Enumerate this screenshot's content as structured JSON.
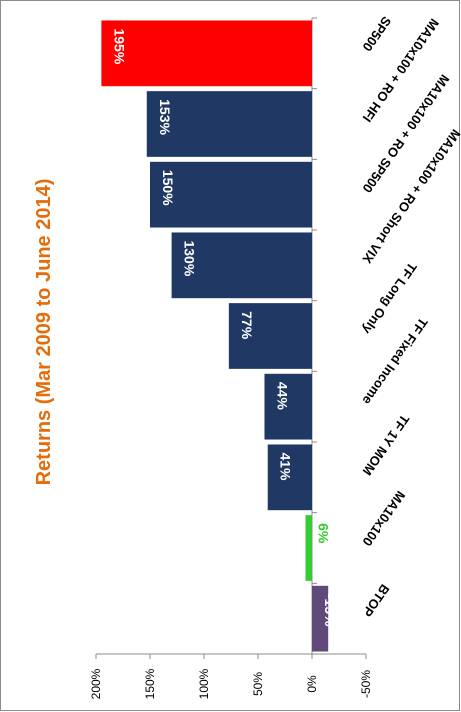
{
  "chart_data": {
    "type": "bar",
    "orientation": "horizontal",
    "title": "Returns (Mar 2009 to June 2014)",
    "categories": [
      "SP500",
      "MA10x100 + RO HFI",
      "MA10x100 + RO SP500",
      "MA10x100 + RO Short VIX",
      "TF Long Only",
      "TF Fixed Income",
      "TF 1Y MOM",
      "MA10x100",
      "BTOP"
    ],
    "values": [
      195,
      153,
      150,
      130,
      77,
      44,
      41,
      6,
      -15
    ],
    "data_labels": [
      "195%",
      "153%",
      "150%",
      "130%",
      "77%",
      "44%",
      "41%",
      "6%",
      "-15%"
    ],
    "colors": [
      "#ff0000",
      "#1f3864",
      "#1f3864",
      "#1f3864",
      "#1f3864",
      "#1f3864",
      "#1f3864",
      "#33cc33",
      "#604a7b"
    ],
    "label_colors": [
      "#ffffff",
      "#ffffff",
      "#ffffff",
      "#ffffff",
      "#ffffff",
      "#ffffff",
      "#ffffff",
      "#33cc33",
      "#ffffff"
    ],
    "title_color": "#e46c0a",
    "value_axis": {
      "range": [
        -50,
        200
      ],
      "ticks": [
        200,
        150,
        100,
        50,
        0,
        -50
      ],
      "tick_labels": [
        "200%",
        "150%",
        "100%",
        "50%",
        "0%",
        "-50%"
      ]
    },
    "grid": false,
    "legend": "none"
  }
}
